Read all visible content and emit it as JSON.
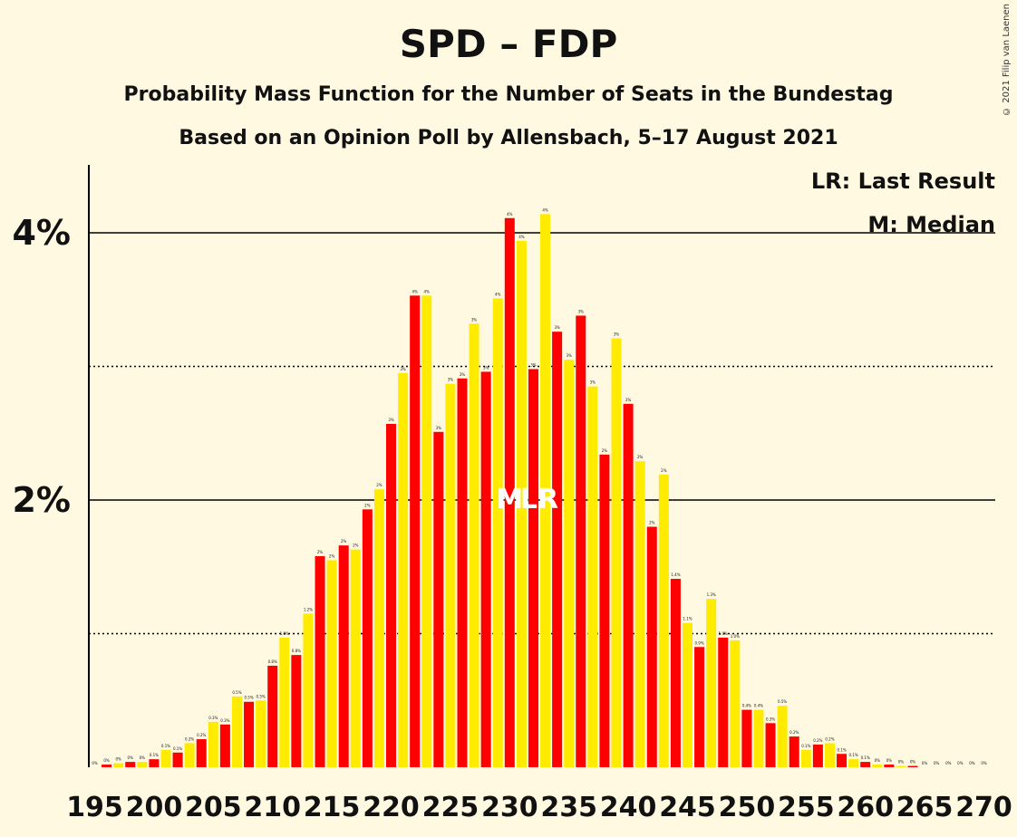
{
  "title": "SPD – FDP",
  "subtitle1": "Probability Mass Function for the Number of Seats in the Bundestag",
  "subtitle2": "Based on an Opinion Poll by Allensbach, 5–17 August 2021",
  "copyright": "© 2021 Filip van Laenen",
  "legend": {
    "last_result": "LR: Last Result",
    "median": "M: Median"
  },
  "colors": {
    "background": "#fff9e1",
    "bar_red": "#ff0000",
    "bar_yellow": "#ffeb00",
    "marker_text": "#ffffff"
  },
  "chart_data": {
    "type": "bar",
    "title": "SPD – FDP",
    "xlabel": "",
    "ylabel": "",
    "x_ticks": [
      195,
      200,
      205,
      210,
      215,
      220,
      225,
      230,
      235,
      240,
      245,
      250,
      255,
      260,
      265,
      270
    ],
    "y_ticks": [
      {
        "value": 2,
        "label": "2%"
      },
      {
        "value": 4,
        "label": "4%"
      }
    ],
    "y_minor_ticks": [
      1,
      3
    ],
    "ylim": [
      0,
      4.5
    ],
    "xlim": [
      195,
      270
    ],
    "median_seat": 230,
    "last_result_seat": 232,
    "marker_labels": [
      "M",
      "LR"
    ],
    "bars": [
      {
        "seats": 195,
        "value": 0.0,
        "label": "0%"
      },
      {
        "seats": 196,
        "value": 0.02,
        "label": "0%"
      },
      {
        "seats": 197,
        "value": 0.03,
        "label": "0%"
      },
      {
        "seats": 198,
        "value": 0.04,
        "label": "0%"
      },
      {
        "seats": 199,
        "value": 0.04,
        "label": "0%"
      },
      {
        "seats": 200,
        "value": 0.06,
        "label": "0.1%"
      },
      {
        "seats": 201,
        "value": 0.13,
        "label": "0.1%"
      },
      {
        "seats": 202,
        "value": 0.11,
        "label": "0.1%"
      },
      {
        "seats": 203,
        "value": 0.18,
        "label": "0.2%"
      },
      {
        "seats": 204,
        "value": 0.21,
        "label": "0.2%"
      },
      {
        "seats": 205,
        "value": 0.34,
        "label": "0.3%"
      },
      {
        "seats": 206,
        "value": 0.32,
        "label": "0.3%"
      },
      {
        "seats": 207,
        "value": 0.53,
        "label": "0.5%"
      },
      {
        "seats": 208,
        "value": 0.49,
        "label": "0.5%"
      },
      {
        "seats": 209,
        "value": 0.5,
        "label": "0.5%"
      },
      {
        "seats": 210,
        "value": 0.76,
        "label": "0.8%"
      },
      {
        "seats": 211,
        "value": 0.97,
        "label": "1.0%"
      },
      {
        "seats": 212,
        "value": 0.84,
        "label": "0.8%"
      },
      {
        "seats": 213,
        "value": 1.15,
        "label": "1.2%"
      },
      {
        "seats": 214,
        "value": 1.58,
        "label": "2%"
      },
      {
        "seats": 215,
        "value": 1.55,
        "label": "2%"
      },
      {
        "seats": 216,
        "value": 1.66,
        "label": "2%"
      },
      {
        "seats": 217,
        "value": 1.63,
        "label": "2%"
      },
      {
        "seats": 218,
        "value": 1.93,
        "label": "2%"
      },
      {
        "seats": 219,
        "value": 2.08,
        "label": "2%"
      },
      {
        "seats": 220,
        "value": 2.57,
        "label": "3%"
      },
      {
        "seats": 221,
        "value": 2.95,
        "label": "3%"
      },
      {
        "seats": 222,
        "value": 3.53,
        "label": "4%"
      },
      {
        "seats": 223,
        "value": 3.53,
        "label": "4%"
      },
      {
        "seats": 224,
        "value": 2.51,
        "label": "3%"
      },
      {
        "seats": 225,
        "value": 2.87,
        "label": "3%"
      },
      {
        "seats": 226,
        "value": 2.91,
        "label": "3%"
      },
      {
        "seats": 227,
        "value": 3.32,
        "label": "3%"
      },
      {
        "seats": 228,
        "value": 2.96,
        "label": "3%"
      },
      {
        "seats": 229,
        "value": 3.51,
        "label": "4%"
      },
      {
        "seats": 230,
        "value": 4.11,
        "label": "4%"
      },
      {
        "seats": 231,
        "value": 3.94,
        "label": "4%"
      },
      {
        "seats": 232,
        "value": 2.98,
        "label": "3%"
      },
      {
        "seats": 233,
        "value": 4.14,
        "label": "4%"
      },
      {
        "seats": 234,
        "value": 3.26,
        "label": "3%"
      },
      {
        "seats": 235,
        "value": 3.05,
        "label": "3%"
      },
      {
        "seats": 236,
        "value": 3.38,
        "label": "3%"
      },
      {
        "seats": 237,
        "value": 2.85,
        "label": "3%"
      },
      {
        "seats": 238,
        "value": 2.34,
        "label": "2%"
      },
      {
        "seats": 239,
        "value": 3.21,
        "label": "3%"
      },
      {
        "seats": 240,
        "value": 2.72,
        "label": "3%"
      },
      {
        "seats": 241,
        "value": 2.29,
        "label": "2%"
      },
      {
        "seats": 242,
        "value": 1.8,
        "label": "2%"
      },
      {
        "seats": 243,
        "value": 2.19,
        "label": "2%"
      },
      {
        "seats": 244,
        "value": 1.41,
        "label": "1.4%"
      },
      {
        "seats": 245,
        "value": 1.08,
        "label": "1.1%"
      },
      {
        "seats": 246,
        "value": 0.9,
        "label": "0.9%"
      },
      {
        "seats": 247,
        "value": 1.26,
        "label": "1.3%"
      },
      {
        "seats": 248,
        "value": 0.97,
        "label": "1.0%"
      },
      {
        "seats": 249,
        "value": 0.95,
        "label": "1.0%"
      },
      {
        "seats": 250,
        "value": 0.43,
        "label": "0.4%"
      },
      {
        "seats": 251,
        "value": 0.43,
        "label": "0.4%"
      },
      {
        "seats": 252,
        "value": 0.33,
        "label": "0.3%"
      },
      {
        "seats": 253,
        "value": 0.46,
        "label": "0.5%"
      },
      {
        "seats": 254,
        "value": 0.23,
        "label": "0.2%"
      },
      {
        "seats": 255,
        "value": 0.13,
        "label": "0.1%"
      },
      {
        "seats": 256,
        "value": 0.17,
        "label": "0.2%"
      },
      {
        "seats": 257,
        "value": 0.18,
        "label": "0.2%"
      },
      {
        "seats": 258,
        "value": 0.1,
        "label": "0.1%"
      },
      {
        "seats": 259,
        "value": 0.06,
        "label": "0.1%"
      },
      {
        "seats": 260,
        "value": 0.04,
        "label": "0.1%"
      },
      {
        "seats": 261,
        "value": 0.02,
        "label": "0%"
      },
      {
        "seats": 262,
        "value": 0.02,
        "label": "0%"
      },
      {
        "seats": 263,
        "value": 0.01,
        "label": "0%"
      },
      {
        "seats": 264,
        "value": 0.01,
        "label": "0%"
      },
      {
        "seats": 265,
        "value": 0.0,
        "label": "0%"
      },
      {
        "seats": 266,
        "value": 0.0,
        "label": "0%"
      },
      {
        "seats": 267,
        "value": 0.0,
        "label": "0%"
      },
      {
        "seats": 268,
        "value": 0.0,
        "label": "0%"
      },
      {
        "seats": 269,
        "value": 0.0,
        "label": "0%"
      },
      {
        "seats": 270,
        "value": 0.0,
        "label": "0%"
      }
    ]
  }
}
